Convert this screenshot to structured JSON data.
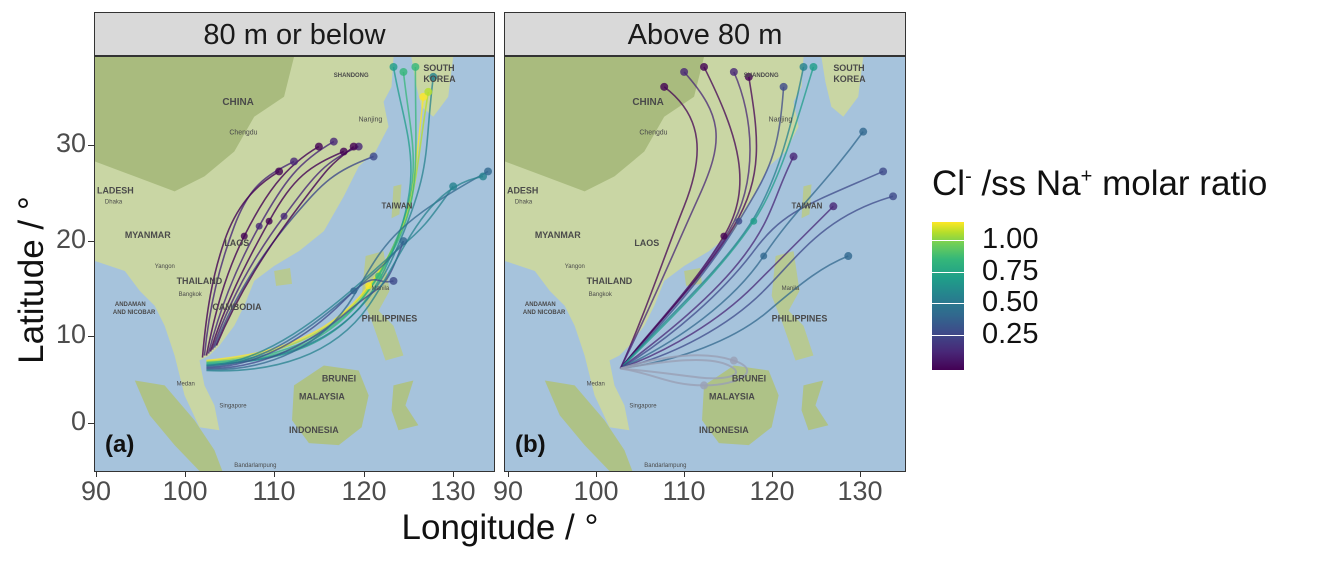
{
  "figure": {
    "ylabel": "Latitude / °",
    "xlabel": "Longitude / °",
    "x_ticks": [
      "90",
      "100",
      "110",
      "120",
      "130"
    ],
    "y_ticks": [
      "30",
      "20",
      "10",
      "0"
    ],
    "legend": {
      "title_cl": "Cl",
      "title_cl_sup": "-",
      "title_mid": " /ss Na",
      "title_na_sup": "+",
      "title_end": " molar ratio",
      "ticks": [
        "1.00",
        "0.75",
        "0.50",
        "0.25"
      ],
      "palette": "viridis",
      "colors": [
        "#440154",
        "#3e4a89",
        "#26828e",
        "#35b779",
        "#fde725"
      ]
    }
  },
  "panels": [
    {
      "strip": "80 m or below",
      "tag": "(a)",
      "map_labels": [
        "SOUTH",
        "KOREA",
        "CHINA",
        "MYANMAR",
        "LAOS",
        "THAILAND",
        "CAMBODIA",
        "PHILIPPINES",
        "BRUNEI",
        "MALAYSIA",
        "INDONESIA",
        "TAIWAN",
        "LADESH",
        "ANDAMAN",
        "AND NICOBAR",
        "SHANDONG",
        "Chengdu",
        "Nanjing",
        "Manila",
        "Singapore",
        "Bandarlampung",
        "Medan",
        "Bangkok",
        "Dhaka",
        "Yangon"
      ]
    },
    {
      "strip": "Above 80 m",
      "tag": "(b)",
      "map_labels": [
        "SOUTH",
        "KOREA",
        "CHINA",
        "MYANMAR",
        "LAOS",
        "THAILAND",
        "PHILIPPINES",
        "BRUNEI",
        "MALAYSIA",
        "INDONESIA",
        "TAIWAN",
        "ADESH",
        "ANDAMAN",
        "AND NICOBAR",
        "SHANDONG",
        "Chengdu",
        "Nanjing",
        "Manila",
        "Singapore",
        "Bandarlampung",
        "Medan",
        "Bangkok",
        "Dhaka",
        "Yangon"
      ]
    }
  ]
}
